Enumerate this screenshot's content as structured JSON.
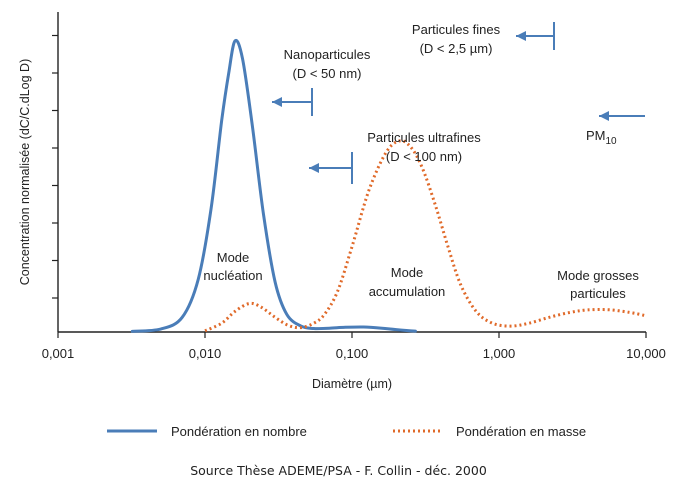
{
  "chart_data": {
    "type": "line",
    "title": "",
    "xlabel": "Diamètre (µm)",
    "ylabel": "Concentration normalisée (dC/C.dLog D)",
    "x_scale": "log",
    "xlim": [
      0.001,
      10
    ],
    "ylim": [
      0,
      1
    ],
    "x_ticks": [
      "0,001",
      "0,010",
      "0,100",
      "1,000",
      "10,000"
    ],
    "y_ticks_labeled": false,
    "grid": false,
    "legend_placement": "bottom",
    "series": [
      {
        "name": "Pondération en nombre",
        "color": "#4a7db8",
        "style": "solid",
        "x": [
          0.0032,
          0.005,
          0.007,
          0.009,
          0.011,
          0.013,
          0.0145,
          0.016,
          0.018,
          0.021,
          0.025,
          0.03,
          0.036,
          0.045,
          0.055,
          0.07,
          0.09,
          0.12,
          0.16,
          0.2,
          0.27
        ],
        "y": [
          0.002,
          0.01,
          0.05,
          0.18,
          0.42,
          0.72,
          0.88,
          0.99,
          0.93,
          0.7,
          0.4,
          0.17,
          0.06,
          0.02,
          0.012,
          0.013,
          0.016,
          0.017,
          0.013,
          0.008,
          0.003
        ]
      },
      {
        "name": "Pondération en masse",
        "color": "#e06a2a",
        "style": "dotted",
        "x": [
          0.01,
          0.013,
          0.016,
          0.02,
          0.024,
          0.03,
          0.037,
          0.045,
          0.055,
          0.065,
          0.08,
          0.1,
          0.13,
          0.17,
          0.21,
          0.25,
          0.3,
          0.37,
          0.45,
          0.55,
          0.7,
          0.9,
          1.2,
          1.6,
          2.2,
          3,
          4,
          5.5,
          7,
          8.5,
          10
        ],
        "y": [
          0.004,
          0.03,
          0.07,
          0.097,
          0.085,
          0.05,
          0.022,
          0.015,
          0.03,
          0.06,
          0.14,
          0.29,
          0.48,
          0.61,
          0.65,
          0.63,
          0.56,
          0.43,
          0.29,
          0.16,
          0.07,
          0.03,
          0.02,
          0.03,
          0.05,
          0.066,
          0.075,
          0.076,
          0.07,
          0.063,
          0.055
        ]
      }
    ],
    "annotations": [
      {
        "id": "nano",
        "lines": [
          "Nanoparticules",
          "(D < 50 nm)"
        ],
        "cutoff_um": 0.05
      },
      {
        "id": "ultra",
        "lines": [
          "Particules ultrafines",
          "(D < 100 nm)"
        ],
        "cutoff_um": 0.1
      },
      {
        "id": "fines",
        "lines": [
          "Particules fines",
          "(D < 2,5 µm)"
        ],
        "cutoff_um": 2.5
      },
      {
        "id": "pm10",
        "text": "PM",
        "sub": "10",
        "cutoff_um": 10
      }
    ],
    "mode_labels": [
      {
        "id": "nucleation",
        "lines": [
          "Mode",
          "nucléation"
        ]
      },
      {
        "id": "accumulation",
        "lines": [
          "Mode",
          "accumulation"
        ]
      },
      {
        "id": "grosses",
        "lines": [
          "Mode grosses",
          "particules"
        ]
      }
    ]
  },
  "source": "Source Thèse ADEME/PSA - F. Collin - déc. 2000"
}
